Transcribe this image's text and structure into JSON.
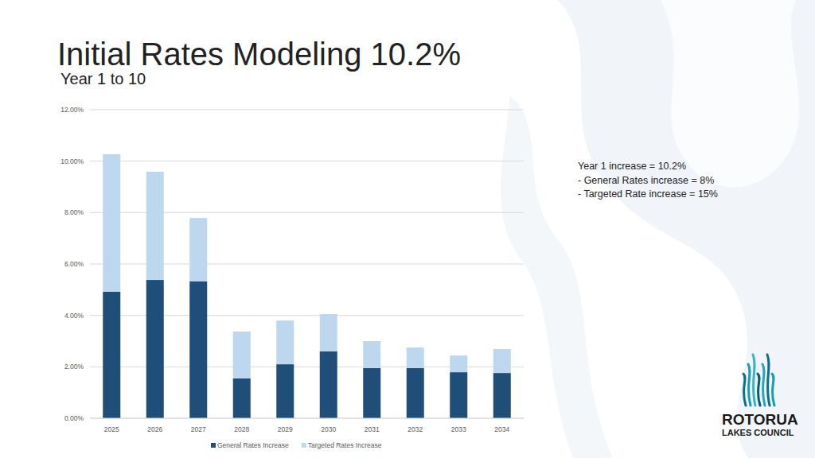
{
  "chart_data": {
    "type": "bar",
    "stacked": true,
    "grid": true,
    "legend": "bottom",
    "title": "Initial Rates Modeling 10.2%",
    "subtitle": "Year 1 to 10",
    "annotations": [
      "Year 1 increase = 10.2%",
      " - General Rates increase = 8%",
      " - Targeted Rate increase = 15%"
    ],
    "logo": [
      "ROTORUA",
      "LAKES COUNCIL"
    ],
    "categories": [
      "2025",
      "2026",
      "2027",
      "2028",
      "2029",
      "2030",
      "2031",
      "2032",
      "2033",
      "2034"
    ],
    "series": [
      {
        "name": "General Rates Increase",
        "color": "#1f4e79",
        "values": [
          4.92,
          5.38,
          5.32,
          1.55,
          2.1,
          2.6,
          1.95,
          1.95,
          1.79,
          1.76
        ]
      },
      {
        "name": "Targeted Rates Increase",
        "color": "#bdd7ee",
        "values": [
          5.35,
          4.21,
          2.47,
          1.82,
          1.7,
          1.45,
          1.05,
          0.8,
          0.65,
          0.93
        ]
      }
    ],
    "ylim": [
      0,
      12
    ],
    "yticks": [
      {
        "value": 0,
        "label": "0.00%"
      },
      {
        "value": 2,
        "label": "2.00%"
      },
      {
        "value": 4,
        "label": "4.00%"
      },
      {
        "value": 6,
        "label": "6.00%"
      },
      {
        "value": 8,
        "label": "8.00%"
      },
      {
        "value": 10,
        "label": "10.00%"
      },
      {
        "value": 12,
        "label": "12.00%"
      }
    ]
  }
}
